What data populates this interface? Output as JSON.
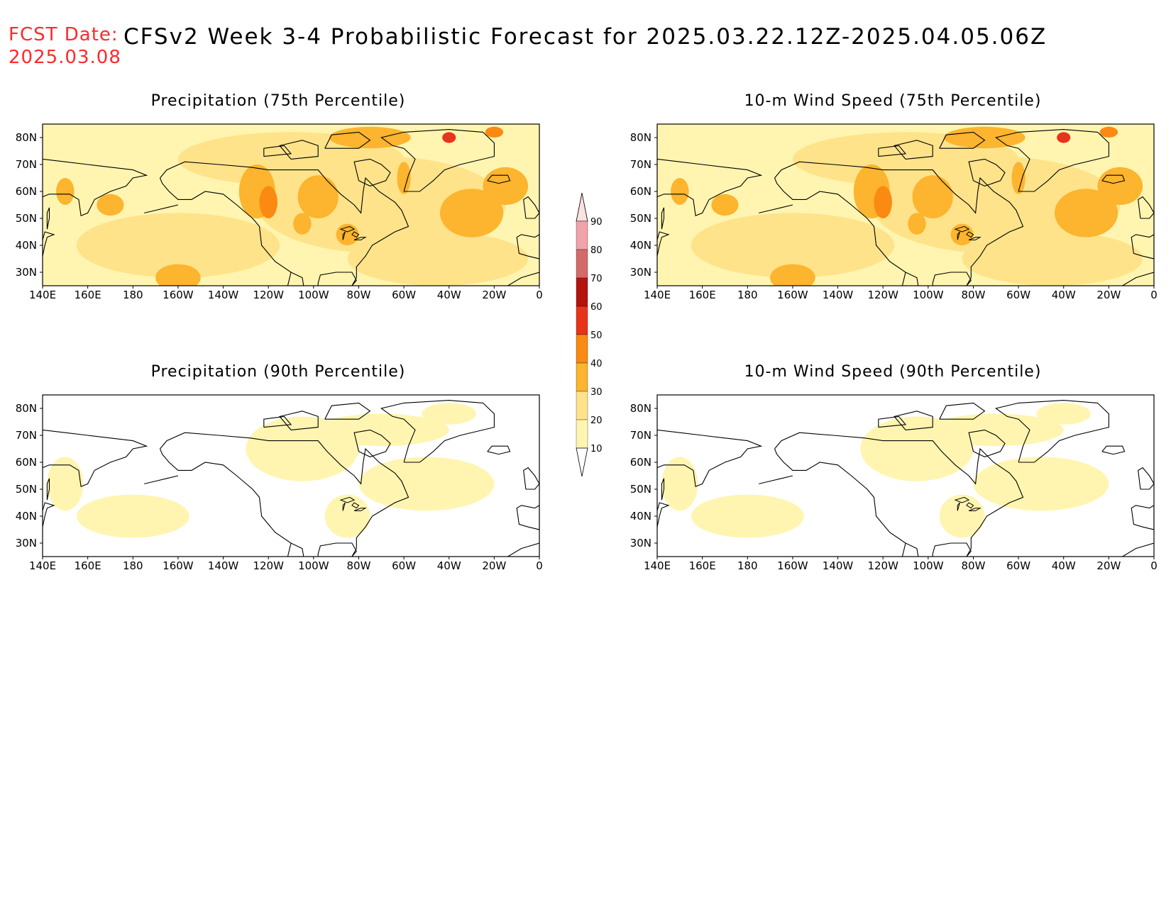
{
  "header": {
    "fcst_label": "FCST Date:",
    "fcst_date": "2025.03.08",
    "title": "CFSv2 Week 3-4 Probabilistic Forecast for 2025.03.22.12Z-2025.04.05.06Z"
  },
  "panels": [
    {
      "title": "Precipitation (75th Percentile)",
      "intensity": "high"
    },
    {
      "title": "10-m Wind Speed (75th Percentile)",
      "intensity": "high"
    },
    {
      "title": "Precipitation (90th Percentile)",
      "intensity": "low"
    },
    {
      "title": "10-m Wind Speed (90th Percentile)",
      "intensity": "low"
    }
  ],
  "map_axes": {
    "lon_labels": [
      "140E",
      "160E",
      "180",
      "160W",
      "140W",
      "120W",
      "100W",
      "80W",
      "60W",
      "40W",
      "20W",
      "0"
    ],
    "lat_labels": [
      "80N",
      "70N",
      "60N",
      "50N",
      "40N",
      "30N"
    ],
    "lon_range": [
      140,
      360
    ],
    "lat_range": [
      25,
      85
    ]
  },
  "colorbar": {
    "levels": [
      "10",
      "20",
      "30",
      "40",
      "50",
      "60",
      "70",
      "80",
      "90"
    ],
    "colors": [
      "#fff5b0",
      "#ffe38a",
      "#fdb42e",
      "#fa8a12",
      "#e8341a",
      "#b5140d",
      "#d46a6a",
      "#f0a3a8",
      "#fde0e0"
    ]
  }
}
